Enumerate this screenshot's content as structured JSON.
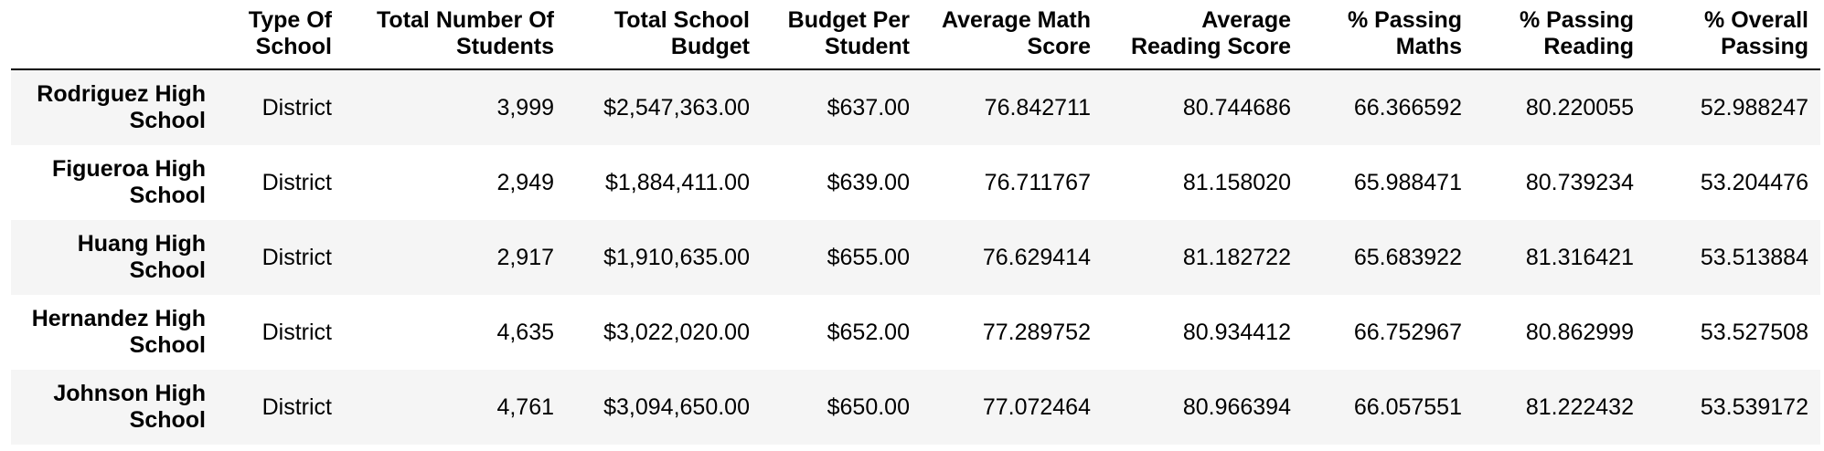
{
  "table": {
    "index_header": "",
    "columns": [
      "Type Of School",
      "Total Number Of Students",
      "Total School Budget",
      "Budget Per Student",
      "Average Math Score",
      "Average Reading Score",
      "% Passing Maths",
      "% Passing Reading",
      "% Overall Passing"
    ],
    "rows": [
      {
        "label": "Rodriguez High School",
        "values": [
          "District",
          "3,999",
          "$2,547,363.00",
          "$637.00",
          "76.842711",
          "80.744686",
          "66.366592",
          "80.220055",
          "52.988247"
        ]
      },
      {
        "label": "Figueroa High School",
        "values": [
          "District",
          "2,949",
          "$1,884,411.00",
          "$639.00",
          "76.711767",
          "81.158020",
          "65.988471",
          "80.739234",
          "53.204476"
        ]
      },
      {
        "label": "Huang High School",
        "values": [
          "District",
          "2,917",
          "$1,910,635.00",
          "$655.00",
          "76.629414",
          "81.182722",
          "65.683922",
          "81.316421",
          "53.513884"
        ]
      },
      {
        "label": "Hernandez High School",
        "values": [
          "District",
          "4,635",
          "$3,022,020.00",
          "$652.00",
          "77.289752",
          "80.934412",
          "66.752967",
          "80.862999",
          "53.527508"
        ]
      },
      {
        "label": "Johnson High School",
        "values": [
          "District",
          "4,761",
          "$3,094,650.00",
          "$650.00",
          "77.072464",
          "80.966394",
          "66.057551",
          "81.222432",
          "53.539172"
        ]
      }
    ]
  },
  "chart_data": {
    "type": "table",
    "title": "",
    "columns": [
      "",
      "Type Of School",
      "Total Number Of Students",
      "Total School Budget",
      "Budget Per Student",
      "Average Math Score",
      "Average Reading Score",
      "% Passing Maths",
      "% Passing Reading",
      "% Overall Passing"
    ],
    "rows": [
      [
        "Rodriguez High School",
        "District",
        "3,999",
        "$2,547,363.00",
        "$637.00",
        "76.842711",
        "80.744686",
        "66.366592",
        "80.220055",
        "52.988247"
      ],
      [
        "Figueroa High School",
        "District",
        "2,949",
        "$1,884,411.00",
        "$639.00",
        "76.711767",
        "81.158020",
        "65.988471",
        "80.739234",
        "53.204476"
      ],
      [
        "Huang High School",
        "District",
        "2,917",
        "$1,910,635.00",
        "$655.00",
        "76.629414",
        "81.182722",
        "65.683922",
        "81.316421",
        "53.513884"
      ],
      [
        "Hernandez High School",
        "District",
        "4,635",
        "$3,022,020.00",
        "$652.00",
        "77.289752",
        "80.934412",
        "66.752967",
        "80.862999",
        "53.527508"
      ],
      [
        "Johnson High School",
        "District",
        "4,761",
        "$3,094,650.00",
        "$650.00",
        "77.072464",
        "80.966394",
        "66.057551",
        "81.222432",
        "53.539172"
      ]
    ],
    "layout": {
      "header_bold": true,
      "index_bold": true,
      "text_align": "right",
      "striped_rows": "odd",
      "grid": false
    }
  },
  "colors": {
    "row_stripe": "#f5f5f5",
    "header_rule": "#000000",
    "text": "#000000",
    "background": "#ffffff"
  }
}
